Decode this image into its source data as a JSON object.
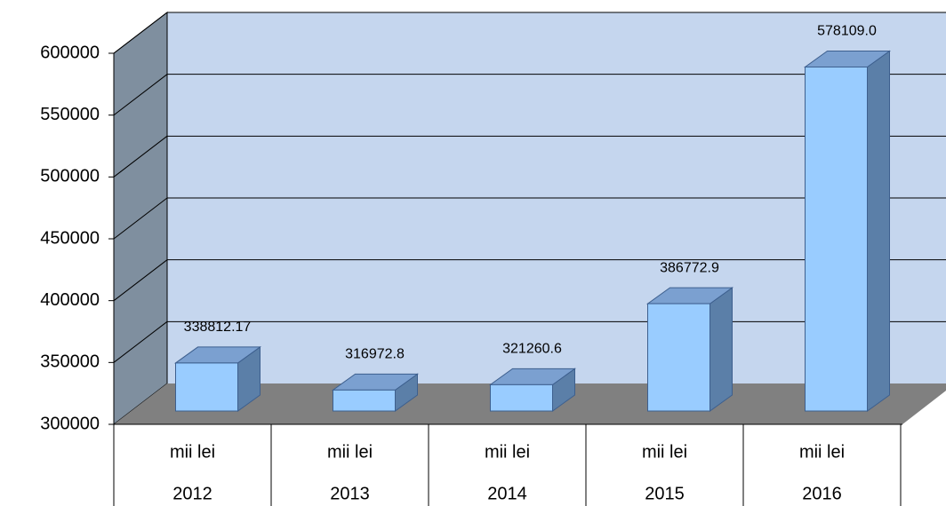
{
  "chart_data": {
    "type": "bar3d",
    "categories": [
      "2012",
      "2013",
      "2014",
      "2015",
      "2016"
    ],
    "units": [
      "mii lei",
      "mii lei",
      "mii lei",
      "mii lei",
      "mii lei"
    ],
    "values": [
      338812.17,
      316972.8,
      321260.6,
      386772.9,
      578109.0
    ],
    "value_labels": [
      "338812.17",
      "316972.8",
      "321260.6",
      "386772.9",
      "578109.0"
    ],
    "color": "#99ccff",
    "ylim": [
      300000,
      600000
    ],
    "yticks": [
      300000,
      350000,
      400000,
      450000,
      500000,
      550000,
      600000
    ],
    "grid": true
  }
}
